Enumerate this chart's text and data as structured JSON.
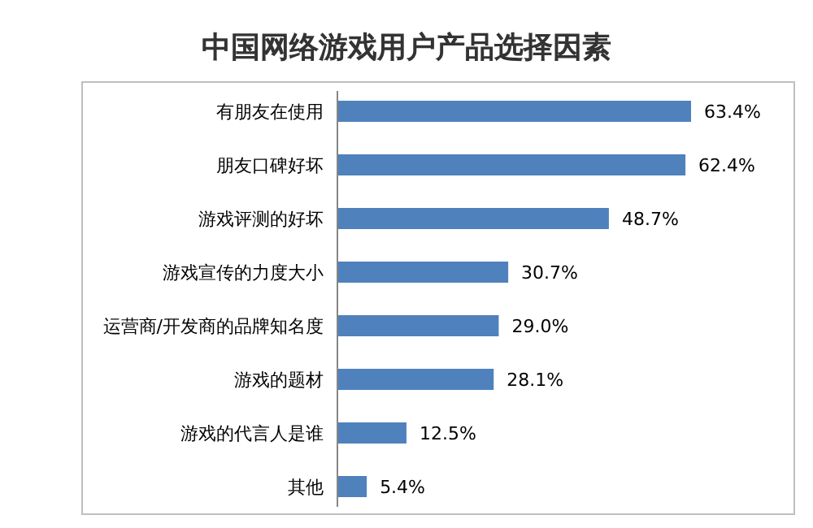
{
  "chart_data": {
    "type": "bar",
    "orientation": "horizontal",
    "title": "中国网络游戏用户产品选择因素",
    "categories": [
      "有朋友在使用",
      "朋友口碑好坏",
      "游戏评测的好坏",
      "游戏宣传的力度大小",
      "运营商/开发商的品牌知名度",
      "游戏的题材",
      "游戏的代言人是谁",
      "其他"
    ],
    "values": [
      63.4,
      62.4,
      48.7,
      30.7,
      29.0,
      28.1,
      12.5,
      5.4
    ],
    "value_labels": [
      "63.4%",
      "62.4%",
      "48.7%",
      "30.7%",
      "29.0%",
      "28.1%",
      "12.5%",
      "5.4%"
    ],
    "color": "#4f81bd"
  }
}
